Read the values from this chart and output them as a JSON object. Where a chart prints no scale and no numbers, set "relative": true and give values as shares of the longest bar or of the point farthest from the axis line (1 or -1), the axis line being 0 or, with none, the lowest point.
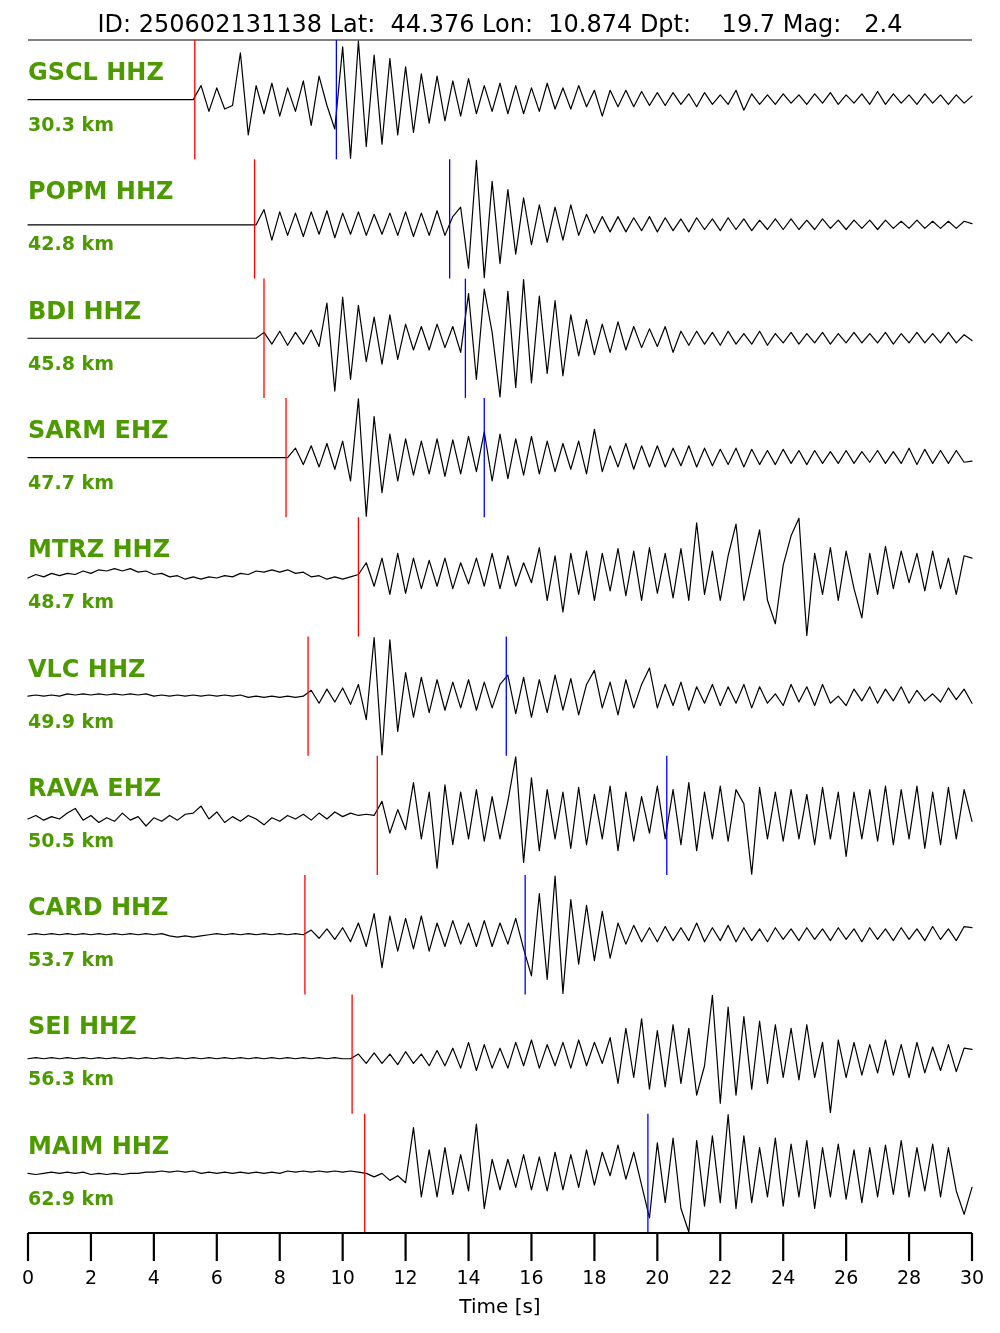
{
  "chart_data": [
    {
      "type": "line",
      "title": "ID: 250602131138 Lat:  44.376 Lon:  10.874 Dpt:    19.7 Mag:   2.4",
      "annotations": [
        "GSCL HHZ",
        "30.3 km"
      ],
      "relative": true,
      "xlim": [
        0,
        30
      ],
      "tick_labels": false,
      "color": "#000000",
      "x": [
        0,
        0.25,
        0.5,
        0.75,
        1,
        1.25,
        1.5,
        1.75,
        2,
        2.25,
        2.5,
        2.75,
        3,
        3.25,
        3.5,
        3.75,
        4,
        4.25,
        4.5,
        4.75,
        5,
        5.25,
        5.5,
        5.75,
        6,
        6.25,
        6.5,
        6.75,
        7,
        7.25,
        7.5,
        7.75,
        8,
        8.25,
        8.5,
        8.75,
        9,
        9.25,
        9.5,
        9.75,
        10,
        10.25,
        10.5,
        10.75,
        11,
        11.25,
        11.5,
        11.75,
        12,
        12.25,
        12.5,
        12.75,
        13,
        13.25,
        13.5,
        13.75,
        14,
        14.25,
        14.5,
        14.75,
        15,
        15.25,
        15.5,
        15.75,
        16,
        16.25,
        16.5,
        16.75,
        17,
        17.25,
        17.5,
        17.75,
        18,
        18.25,
        18.5,
        18.75,
        19,
        19.25,
        19.5,
        19.75,
        20,
        20.25,
        20.5,
        20.75,
        21,
        21.25,
        21.5,
        21.75,
        22,
        22.25,
        22.5,
        22.75,
        23,
        23.25,
        23.5,
        23.75,
        24,
        24.25,
        24.5,
        24.75,
        25,
        25.25,
        25.5,
        25.75,
        26,
        26.25,
        26.5,
        26.75,
        27,
        27.25,
        27.5,
        27.75,
        28,
        28.25,
        28.5,
        28.75,
        29,
        29.25,
        29.5,
        29.75,
        30
      ],
      "values": [
        0.5,
        0.5,
        0.5,
        0.5,
        0.5,
        0.5,
        0.5,
        0.5,
        0.5,
        0.5,
        0.5,
        0.5,
        0.5,
        0.5,
        0.5,
        0.5,
        0.5,
        0.5,
        0.5,
        0.5,
        0.5,
        0.5,
        0.62,
        0.4,
        0.6,
        0.42,
        0.45,
        0.9,
        0.2,
        0.62,
        0.38,
        0.64,
        0.36,
        0.6,
        0.4,
        0.66,
        0.28,
        0.7,
        0.45,
        0.25,
        0.95,
        0,
        1,
        0.1,
        0.88,
        0.12,
        0.85,
        0.2,
        0.78,
        0.22,
        0.72,
        0.3,
        0.7,
        0.32,
        0.66,
        0.36,
        0.68,
        0.38,
        0.62,
        0.4,
        0.64,
        0.38,
        0.62,
        0.38,
        0.6,
        0.4,
        0.64,
        0.42,
        0.6,
        0.42,
        0.62,
        0.44,
        0.58,
        0.36,
        0.58,
        0.44,
        0.58,
        0.44,
        0.57,
        0.45,
        0.56,
        0.45,
        0.56,
        0.46,
        0.55,
        0.44,
        0.56,
        0.46,
        0.54,
        0.46,
        0.58,
        0.41,
        0.55,
        0.46,
        0.54,
        0.46,
        0.55,
        0.47,
        0.54,
        0.46,
        0.55,
        0.47,
        0.56,
        0.46,
        0.54,
        0.47,
        0.55,
        0.46,
        0.57,
        0.46,
        0.55,
        0.47,
        0.54,
        0.46,
        0.55,
        0.47,
        0.54,
        0.46,
        0.54,
        0.47,
        0.53
      ],
      "ref_lines": [
        {
          "axis": "x",
          "value": 5.3,
          "color": "#ff0000"
        },
        {
          "axis": "x",
          "value": 9.8,
          "color": "#0000ff"
        }
      ]
    },
    {
      "type": "line",
      "annotations": [
        "POPM HHZ",
        "42.8 km"
      ],
      "relative": true,
      "xlim": [
        0,
        30
      ],
      "tick_labels": false,
      "color": "#000000",
      "x": [
        0,
        0.25,
        0.5,
        0.75,
        1,
        1.25,
        1.5,
        1.75,
        2,
        2.25,
        2.5,
        2.75,
        3,
        3.25,
        3.5,
        3.75,
        4,
        4.25,
        4.5,
        4.75,
        5,
        5.25,
        5.5,
        5.75,
        6,
        6.25,
        6.5,
        6.75,
        7,
        7.25,
        7.5,
        7.75,
        8,
        8.25,
        8.5,
        8.75,
        9,
        9.25,
        9.5,
        9.75,
        10,
        10.25,
        10.5,
        10.75,
        11,
        11.25,
        11.5,
        11.75,
        12,
        12.25,
        12.5,
        12.75,
        13,
        13.25,
        13.5,
        13.75,
        14,
        14.25,
        14.5,
        14.75,
        15,
        15.25,
        15.5,
        15.75,
        16,
        16.25,
        16.5,
        16.75,
        17,
        17.25,
        17.5,
        17.75,
        18,
        18.25,
        18.5,
        18.75,
        19,
        19.25,
        19.5,
        19.75,
        20,
        20.25,
        20.5,
        20.75,
        21,
        21.25,
        21.5,
        21.75,
        22,
        22.25,
        22.5,
        22.75,
        23,
        23.25,
        23.5,
        23.75,
        24,
        24.25,
        24.5,
        24.75,
        25,
        25.25,
        25.5,
        25.75,
        26,
        26.25,
        26.5,
        26.75,
        27,
        27.25,
        27.5,
        27.75,
        28,
        28.25,
        28.5,
        28.75,
        29,
        29.25,
        29.5,
        29.75,
        30
      ],
      "values": [
        0.45,
        0.45,
        0.45,
        0.45,
        0.45,
        0.45,
        0.45,
        0.45,
        0.45,
        0.45,
        0.45,
        0.45,
        0.45,
        0.45,
        0.45,
        0.45,
        0.45,
        0.45,
        0.45,
        0.45,
        0.45,
        0.45,
        0.45,
        0.45,
        0.45,
        0.45,
        0.45,
        0.45,
        0.45,
        0.45,
        0.58,
        0.32,
        0.56,
        0.36,
        0.55,
        0.35,
        0.56,
        0.37,
        0.57,
        0.34,
        0.55,
        0.37,
        0.56,
        0.36,
        0.54,
        0.37,
        0.55,
        0.36,
        0.56,
        0.35,
        0.55,
        0.36,
        0.57,
        0.36,
        0.52,
        0.6,
        0.08,
        1,
        0,
        0.82,
        0.12,
        0.75,
        0.2,
        0.68,
        0.28,
        0.62,
        0.3,
        0.6,
        0.32,
        0.62,
        0.36,
        0.54,
        0.38,
        0.52,
        0.39,
        0.52,
        0.39,
        0.51,
        0.4,
        0.52,
        0.39,
        0.51,
        0.4,
        0.5,
        0.39,
        0.51,
        0.41,
        0.5,
        0.4,
        0.51,
        0.41,
        0.5,
        0.4,
        0.49,
        0.41,
        0.5,
        0.41,
        0.5,
        0.41,
        0.49,
        0.41,
        0.5,
        0.42,
        0.49,
        0.41,
        0.49,
        0.42,
        0.49,
        0.41,
        0.49,
        0.42,
        0.48,
        0.42,
        0.49,
        0.42,
        0.48,
        0.42,
        0.48,
        0.42,
        0.48,
        0.46
      ],
      "ref_lines": [
        {
          "axis": "x",
          "value": 7.2,
          "color": "#ff0000"
        },
        {
          "axis": "x",
          "value": 13.4,
          "color": "#0000ff"
        }
      ]
    },
    {
      "type": "line",
      "annotations": [
        "BDI HHZ",
        "45.8 km"
      ],
      "relative": true,
      "xlim": [
        0,
        30
      ],
      "tick_labels": false,
      "color": "#000000",
      "x": [
        0,
        0.25,
        0.5,
        0.75,
        1,
        1.25,
        1.5,
        1.75,
        2,
        2.25,
        2.5,
        2.75,
        3,
        3.25,
        3.5,
        3.75,
        4,
        4.25,
        4.5,
        4.75,
        5,
        5.25,
        5.5,
        5.75,
        6,
        6.25,
        6.5,
        6.75,
        7,
        7.25,
        7.5,
        7.75,
        8,
        8.25,
        8.5,
        8.75,
        9,
        9.25,
        9.5,
        9.75,
        10,
        10.25,
        10.5,
        10.75,
        11,
        11.25,
        11.5,
        11.75,
        12,
        12.25,
        12.5,
        12.75,
        13,
        13.25,
        13.5,
        13.75,
        14,
        14.25,
        14.5,
        14.75,
        15,
        15.25,
        15.5,
        15.75,
        16,
        16.25,
        16.5,
        16.75,
        17,
        17.25,
        17.5,
        17.75,
        18,
        18.25,
        18.5,
        18.75,
        19,
        19.25,
        19.5,
        19.75,
        20,
        20.25,
        20.5,
        20.75,
        21,
        21.25,
        21.5,
        21.75,
        22,
        22.25,
        22.5,
        22.75,
        23,
        23.25,
        23.5,
        23.75,
        24,
        24.25,
        24.5,
        24.75,
        25,
        25.25,
        25.5,
        25.75,
        26,
        26.25,
        26.5,
        26.75,
        27,
        27.25,
        27.5,
        27.75,
        28,
        28.25,
        28.5,
        28.75,
        29,
        29.25,
        29.5,
        29.75,
        30
      ],
      "values": [
        0.5,
        0.5,
        0.5,
        0.5,
        0.5,
        0.5,
        0.5,
        0.5,
        0.5,
        0.5,
        0.5,
        0.5,
        0.5,
        0.5,
        0.5,
        0.5,
        0.5,
        0.5,
        0.5,
        0.5,
        0.5,
        0.5,
        0.5,
        0.5,
        0.5,
        0.5,
        0.5,
        0.5,
        0.5,
        0.5,
        0.55,
        0.45,
        0.56,
        0.44,
        0.55,
        0.45,
        0.57,
        0.43,
        0.8,
        0.05,
        0.85,
        0.15,
        0.78,
        0.3,
        0.68,
        0.28,
        0.7,
        0.32,
        0.62,
        0.4,
        0.6,
        0.4,
        0.62,
        0.42,
        0.6,
        0.38,
        0.88,
        0.15,
        0.92,
        0.55,
        0,
        0.9,
        0.08,
        1,
        0.12,
        0.86,
        0.2,
        0.82,
        0.18,
        0.7,
        0.35,
        0.66,
        0.36,
        0.62,
        0.38,
        0.64,
        0.4,
        0.6,
        0.42,
        0.58,
        0.43,
        0.6,
        0.38,
        0.56,
        0.44,
        0.56,
        0.45,
        0.55,
        0.44,
        0.56,
        0.45,
        0.54,
        0.45,
        0.56,
        0.44,
        0.54,
        0.46,
        0.55,
        0.45,
        0.54,
        0.46,
        0.55,
        0.45,
        0.54,
        0.46,
        0.55,
        0.46,
        0.54,
        0.46,
        0.55,
        0.45,
        0.54,
        0.46,
        0.55,
        0.46,
        0.54,
        0.46,
        0.55,
        0.46,
        0.53,
        0.48
      ],
      "ref_lines": [
        {
          "axis": "x",
          "value": 7.5,
          "color": "#ff0000"
        },
        {
          "axis": "x",
          "value": 13.9,
          "color": "#0000ff"
        }
      ]
    },
    {
      "type": "line",
      "annotations": [
        "SARM EHZ",
        "47.7 km"
      ],
      "relative": true,
      "xlim": [
        0,
        30
      ],
      "tick_labels": false,
      "color": "#000000",
      "x": [
        0,
        0.25,
        0.5,
        0.75,
        1,
        1.25,
        1.5,
        1.75,
        2,
        2.25,
        2.5,
        2.75,
        3,
        3.25,
        3.5,
        3.75,
        4,
        4.25,
        4.5,
        4.75,
        5,
        5.25,
        5.5,
        5.75,
        6,
        6.25,
        6.5,
        6.75,
        7,
        7.25,
        7.5,
        7.75,
        8,
        8.25,
        8.5,
        8.75,
        9,
        9.25,
        9.5,
        9.75,
        10,
        10.25,
        10.5,
        10.75,
        11,
        11.25,
        11.5,
        11.75,
        12,
        12.25,
        12.5,
        12.75,
        13,
        13.25,
        13.5,
        13.75,
        14,
        14.25,
        14.5,
        14.75,
        15,
        15.25,
        15.5,
        15.75,
        16,
        16.25,
        16.5,
        16.75,
        17,
        17.25,
        17.5,
        17.75,
        18,
        18.25,
        18.5,
        18.75,
        19,
        19.25,
        19.5,
        19.75,
        20,
        20.25,
        20.5,
        20.75,
        21,
        21.25,
        21.5,
        21.75,
        22,
        22.25,
        22.5,
        22.75,
        23,
        23.25,
        23.5,
        23.75,
        24,
        24.25,
        24.5,
        24.75,
        25,
        25.25,
        25.5,
        25.75,
        26,
        26.25,
        26.5,
        26.75,
        27,
        27.25,
        27.5,
        27.75,
        28,
        28.25,
        28.5,
        28.75,
        29,
        29.25,
        29.5,
        29.75,
        30
      ],
      "values": [
        0.5,
        0.5,
        0.5,
        0.5,
        0.5,
        0.5,
        0.5,
        0.5,
        0.5,
        0.5,
        0.5,
        0.5,
        0.5,
        0.5,
        0.5,
        0.5,
        0.5,
        0.5,
        0.5,
        0.5,
        0.5,
        0.5,
        0.5,
        0.5,
        0.5,
        0.5,
        0.5,
        0.5,
        0.5,
        0.5,
        0.5,
        0.5,
        0.5,
        0.5,
        0.58,
        0.44,
        0.6,
        0.42,
        0.62,
        0.4,
        0.64,
        0.3,
        1,
        0,
        0.85,
        0.2,
        0.7,
        0.3,
        0.66,
        0.35,
        0.64,
        0.36,
        0.66,
        0.34,
        0.65,
        0.36,
        0.68,
        0.38,
        0.72,
        0.3,
        0.7,
        0.32,
        0.66,
        0.35,
        0.68,
        0.36,
        0.64,
        0.38,
        0.62,
        0.4,
        0.64,
        0.36,
        0.74,
        0.38,
        0.6,
        0.42,
        0.62,
        0.4,
        0.6,
        0.42,
        0.6,
        0.42,
        0.58,
        0.43,
        0.6,
        0.42,
        0.58,
        0.43,
        0.57,
        0.44,
        0.58,
        0.42,
        0.57,
        0.44,
        0.56,
        0.44,
        0.57,
        0.45,
        0.56,
        0.44,
        0.56,
        0.45,
        0.55,
        0.45,
        0.56,
        0.45,
        0.55,
        0.46,
        0.56,
        0.45,
        0.55,
        0.45,
        0.58,
        0.44,
        0.57,
        0.45,
        0.56,
        0.45,
        0.56,
        0.46,
        0.47
      ],
      "ref_lines": [
        {
          "axis": "x",
          "value": 8.2,
          "color": "#ff0000"
        },
        {
          "axis": "x",
          "value": 14.5,
          "color": "#0000ff"
        }
      ]
    },
    {
      "type": "line",
      "annotations": [
        "MTRZ HHZ",
        "48.7 km"
      ],
      "relative": true,
      "xlim": [
        0,
        30
      ],
      "tick_labels": false,
      "color": "#000000",
      "x": [
        0,
        0.25,
        0.5,
        0.75,
        1,
        1.25,
        1.5,
        1.75,
        2,
        2.25,
        2.5,
        2.75,
        3,
        3.25,
        3.5,
        3.75,
        4,
        4.25,
        4.5,
        4.75,
        5,
        5.25,
        5.5,
        5.75,
        6,
        6.25,
        6.5,
        6.75,
        7,
        7.25,
        7.5,
        7.75,
        8,
        8.25,
        8.5,
        8.75,
        9,
        9.25,
        9.5,
        9.75,
        10,
        10.25,
        10.5,
        10.75,
        11,
        11.25,
        11.5,
        11.75,
        12,
        12.25,
        12.5,
        12.75,
        13,
        13.25,
        13.5,
        13.75,
        14,
        14.25,
        14.5,
        14.75,
        15,
        15.25,
        15.5,
        15.75,
        16,
        16.25,
        16.5,
        16.75,
        17,
        17.25,
        17.5,
        17.75,
        18,
        18.25,
        18.5,
        18.75,
        19,
        19.25,
        19.5,
        19.75,
        20,
        20.25,
        20.5,
        20.75,
        21,
        21.25,
        21.5,
        21.75,
        22,
        22.25,
        22.5,
        22.75,
        23,
        23.25,
        23.5,
        23.75,
        24,
        24.25,
        24.5,
        24.75,
        25,
        25.25,
        25.5,
        25.75,
        26,
        26.25,
        26.5,
        26.75,
        27,
        27.25,
        27.5,
        27.75,
        28,
        28.25,
        28.5,
        28.75,
        29,
        29.25,
        29.5,
        29.75,
        30
      ],
      "values": [
        0.49,
        0.52,
        0.5,
        0.53,
        0.51,
        0.53,
        0.52,
        0.55,
        0.53,
        0.56,
        0.55,
        0.57,
        0.55,
        0.57,
        0.54,
        0.55,
        0.52,
        0.53,
        0.5,
        0.51,
        0.48,
        0.5,
        0.48,
        0.5,
        0.49,
        0.51,
        0.5,
        0.53,
        0.52,
        0.55,
        0.54,
        0.56,
        0.54,
        0.56,
        0.53,
        0.54,
        0.5,
        0.51,
        0.48,
        0.5,
        0.48,
        0.5,
        0.52,
        0.62,
        0.42,
        0.66,
        0.35,
        0.7,
        0.36,
        0.66,
        0.4,
        0.64,
        0.42,
        0.66,
        0.4,
        0.62,
        0.44,
        0.66,
        0.42,
        0.7,
        0.4,
        0.68,
        0.42,
        0.62,
        0.45,
        0.75,
        0.3,
        0.68,
        0.2,
        0.7,
        0.35,
        0.72,
        0.3,
        0.7,
        0.38,
        0.74,
        0.34,
        0.72,
        0.3,
        0.75,
        0.36,
        0.7,
        0.32,
        0.74,
        0.3,
        0.96,
        0.35,
        0.72,
        0.3,
        0.68,
        0.95,
        0.3,
        0.6,
        0.9,
        0.3,
        0.1,
        0.6,
        0.85,
        1,
        0,
        0.7,
        0.35,
        0.75,
        0.3,
        0.72,
        0.4,
        0.15,
        0.7,
        0.35,
        0.76,
        0.4,
        0.72,
        0.45,
        0.7,
        0.38,
        0.72,
        0.4,
        0.66,
        0.35,
        0.68,
        0.66
      ],
      "ref_lines": [
        {
          "axis": "x",
          "value": 10.5,
          "color": "#ff0000"
        }
      ]
    },
    {
      "type": "line",
      "annotations": [
        "VLC HHZ",
        "49.9 km"
      ],
      "relative": true,
      "xlim": [
        0,
        30
      ],
      "tick_labels": false,
      "color": "#000000",
      "x": [
        0,
        0.25,
        0.5,
        0.75,
        1,
        1.25,
        1.5,
        1.75,
        2,
        2.25,
        2.5,
        2.75,
        3,
        3.25,
        3.5,
        3.75,
        4,
        4.25,
        4.5,
        4.75,
        5,
        5.25,
        5.5,
        5.75,
        6,
        6.25,
        6.5,
        6.75,
        7,
        7.25,
        7.5,
        7.75,
        8,
        8.25,
        8.5,
        8.75,
        9,
        9.25,
        9.5,
        9.75,
        10,
        10.25,
        10.5,
        10.75,
        11,
        11.25,
        11.5,
        11.75,
        12,
        12.25,
        12.5,
        12.75,
        13,
        13.25,
        13.5,
        13.75,
        14,
        14.25,
        14.5,
        14.75,
        15,
        15.25,
        15.5,
        15.75,
        16,
        16.25,
        16.5,
        16.75,
        17,
        17.25,
        17.5,
        17.75,
        18,
        18.25,
        18.5,
        18.75,
        19,
        19.25,
        19.5,
        19.75,
        20,
        20.25,
        20.5,
        20.75,
        21,
        21.25,
        21.5,
        21.75,
        22,
        22.25,
        22.5,
        22.75,
        23,
        23.25,
        23.5,
        23.75,
        24,
        24.25,
        24.5,
        24.75,
        25,
        25.25,
        25.5,
        25.75,
        26,
        26.25,
        26.5,
        26.75,
        27,
        27.25,
        27.5,
        27.75,
        28,
        28.25,
        28.5,
        28.75,
        29,
        29.25,
        29.5,
        29.75,
        30
      ],
      "values": [
        0.5,
        0.51,
        0.5,
        0.51,
        0.5,
        0.52,
        0.51,
        0.52,
        0.51,
        0.52,
        0.51,
        0.52,
        0.51,
        0.52,
        0.51,
        0.52,
        0.5,
        0.51,
        0.5,
        0.51,
        0.5,
        0.51,
        0.5,
        0.51,
        0.5,
        0.51,
        0.5,
        0.51,
        0.49,
        0.5,
        0.49,
        0.5,
        0.49,
        0.5,
        0.49,
        0.5,
        0.55,
        0.44,
        0.56,
        0.45,
        0.57,
        0.43,
        0.6,
        0.3,
        1,
        0,
        0.98,
        0.2,
        0.7,
        0.32,
        0.66,
        0.36,
        0.64,
        0.38,
        0.62,
        0.4,
        0.64,
        0.38,
        0.62,
        0.4,
        0.6,
        0.68,
        0.35,
        0.66,
        0.32,
        0.64,
        0.36,
        0.68,
        0.38,
        0.65,
        0.34,
        0.6,
        0.72,
        0.4,
        0.62,
        0.34,
        0.64,
        0.4,
        0.6,
        0.74,
        0.4,
        0.6,
        0.42,
        0.62,
        0.38,
        0.58,
        0.44,
        0.6,
        0.42,
        0.58,
        0.44,
        0.6,
        0.4,
        0.58,
        0.44,
        0.52,
        0.42,
        0.6,
        0.45,
        0.58,
        0.42,
        0.6,
        0.44,
        0.5,
        0.42,
        0.56,
        0.46,
        0.58,
        0.44,
        0.56,
        0.46,
        0.58,
        0.44,
        0.55,
        0.46,
        0.52,
        0.45,
        0.57,
        0.47,
        0.56,
        0.44
      ],
      "ref_lines": [
        {
          "axis": "x",
          "value": 8.9,
          "color": "#ff0000"
        },
        {
          "axis": "x",
          "value": 15.2,
          "color": "#0000ff"
        }
      ]
    },
    {
      "type": "line",
      "annotations": [
        "RAVA EHZ",
        "50.5 km"
      ],
      "relative": true,
      "xlim": [
        0,
        30
      ],
      "tick_labels": false,
      "color": "#000000",
      "x": [
        0,
        0.25,
        0.5,
        0.75,
        1,
        1.25,
        1.5,
        1.75,
        2,
        2.25,
        2.5,
        2.75,
        3,
        3.25,
        3.5,
        3.75,
        4,
        4.25,
        4.5,
        4.75,
        5,
        5.25,
        5.5,
        5.75,
        6,
        6.25,
        6.5,
        6.75,
        7,
        7.25,
        7.5,
        7.75,
        8,
        8.25,
        8.5,
        8.75,
        9,
        9.25,
        9.5,
        9.75,
        10,
        10.25,
        10.5,
        10.75,
        11,
        11.25,
        11.5,
        11.75,
        12,
        12.25,
        12.5,
        12.75,
        13,
        13.25,
        13.5,
        13.75,
        14,
        14.25,
        14.5,
        14.75,
        15,
        15.25,
        15.5,
        15.75,
        16,
        16.25,
        16.5,
        16.75,
        17,
        17.25,
        17.5,
        17.75,
        18,
        18.25,
        18.5,
        18.75,
        19,
        19.25,
        19.5,
        19.75,
        20,
        20.25,
        20.5,
        20.75,
        21,
        21.25,
        21.5,
        21.75,
        22,
        22.25,
        22.5,
        22.75,
        23,
        23.25,
        23.5,
        23.75,
        24,
        24.25,
        24.5,
        24.75,
        25,
        25.25,
        25.5,
        25.75,
        26,
        26.25,
        26.5,
        26.75,
        27,
        27.25,
        27.5,
        27.75,
        28,
        28.25,
        28.5,
        28.75,
        29,
        29.25,
        29.5,
        29.75,
        30
      ],
      "values": [
        0.47,
        0.5,
        0.46,
        0.49,
        0.47,
        0.52,
        0.56,
        0.46,
        0.5,
        0.44,
        0.48,
        0.45,
        0.52,
        0.46,
        0.49,
        0.41,
        0.48,
        0.45,
        0.5,
        0.46,
        0.51,
        0.52,
        0.58,
        0.47,
        0.53,
        0.44,
        0.49,
        0.45,
        0.5,
        0.47,
        0.42,
        0.48,
        0.45,
        0.5,
        0.47,
        0.51,
        0.46,
        0.52,
        0.47,
        0.53,
        0.49,
        0.52,
        0.5,
        0.51,
        0.5,
        0.62,
        0.35,
        0.55,
        0.38,
        0.78,
        0.3,
        0.7,
        0.05,
        0.76,
        0.25,
        0.7,
        0.3,
        0.72,
        0.28,
        0.66,
        0.3,
        0.62,
        1,
        0.1,
        0.82,
        0.2,
        0.72,
        0.3,
        0.7,
        0.22,
        0.74,
        0.25,
        0.68,
        0.3,
        0.75,
        0.2,
        0.7,
        0.28,
        0.66,
        0.35,
        0.75,
        0.3,
        0.72,
        0.25,
        0.78,
        0.2,
        0.7,
        0.3,
        0.75,
        0.28,
        0.72,
        0.6,
        0,
        0.74,
        0.3,
        0.7,
        0.28,
        0.72,
        0.3,
        0.68,
        0.25,
        0.74,
        0.3,
        0.7,
        0.15,
        0.7,
        0.3,
        0.72,
        0.28,
        0.75,
        0.25,
        0.72,
        0.3,
        0.75,
        0.22,
        0.7,
        0.25,
        0.74,
        0.3,
        0.72,
        0.45
      ],
      "ref_lines": [
        {
          "axis": "x",
          "value": 11.1,
          "color": "#ff0000"
        },
        {
          "axis": "x",
          "value": 20.3,
          "color": "#0000ff"
        }
      ]
    },
    {
      "type": "line",
      "annotations": [
        "CARD HHZ",
        "53.7 km"
      ],
      "relative": true,
      "xlim": [
        0,
        30
      ],
      "tick_labels": false,
      "color": "#000000",
      "x": [
        0,
        0.25,
        0.5,
        0.75,
        1,
        1.25,
        1.5,
        1.75,
        2,
        2.25,
        2.5,
        2.75,
        3,
        3.25,
        3.5,
        3.75,
        4,
        4.25,
        4.5,
        4.75,
        5,
        5.25,
        5.5,
        5.75,
        6,
        6.25,
        6.5,
        6.75,
        7,
        7.25,
        7.5,
        7.75,
        8,
        8.25,
        8.5,
        8.75,
        9,
        9.25,
        9.5,
        9.75,
        10,
        10.25,
        10.5,
        10.75,
        11,
        11.25,
        11.5,
        11.75,
        12,
        12.25,
        12.5,
        12.75,
        13,
        13.25,
        13.5,
        13.75,
        14,
        14.25,
        14.5,
        14.75,
        15,
        15.25,
        15.5,
        15.75,
        16,
        16.25,
        16.5,
        16.75,
        17,
        17.25,
        17.5,
        17.75,
        18,
        18.25,
        18.5,
        18.75,
        19,
        19.25,
        19.5,
        19.75,
        20,
        20.25,
        20.5,
        20.75,
        21,
        21.25,
        21.5,
        21.75,
        22,
        22.25,
        22.5,
        22.75,
        23,
        23.25,
        23.5,
        23.75,
        24,
        24.25,
        24.5,
        24.75,
        25,
        25.25,
        25.5,
        25.75,
        26,
        26.25,
        26.5,
        26.75,
        27,
        27.25,
        27.5,
        27.75,
        28,
        28.25,
        28.5,
        28.75,
        29,
        29.25,
        29.5,
        29.75,
        30
      ],
      "values": [
        0.5,
        0.51,
        0.5,
        0.51,
        0.5,
        0.51,
        0.5,
        0.51,
        0.5,
        0.51,
        0.5,
        0.51,
        0.5,
        0.51,
        0.5,
        0.51,
        0.5,
        0.51,
        0.49,
        0.48,
        0.49,
        0.48,
        0.49,
        0.5,
        0.51,
        0.5,
        0.51,
        0.5,
        0.51,
        0.5,
        0.51,
        0.5,
        0.51,
        0.5,
        0.51,
        0.5,
        0.54,
        0.47,
        0.55,
        0.46,
        0.56,
        0.44,
        0.6,
        0.4,
        0.68,
        0.22,
        0.66,
        0.36,
        0.64,
        0.38,
        0.66,
        0.36,
        0.6,
        0.4,
        0.62,
        0.42,
        0.6,
        0.4,
        0.62,
        0.4,
        0.6,
        0.42,
        0.64,
        0.38,
        0.15,
        0.85,
        0.12,
        1,
        0,
        0.8,
        0.25,
        0.75,
        0.28,
        0.7,
        0.3,
        0.6,
        0.42,
        0.58,
        0.44,
        0.56,
        0.44,
        0.57,
        0.45,
        0.56,
        0.45,
        0.6,
        0.44,
        0.56,
        0.45,
        0.58,
        0.44,
        0.56,
        0.45,
        0.55,
        0.44,
        0.56,
        0.46,
        0.55,
        0.45,
        0.56,
        0.46,
        0.55,
        0.45,
        0.56,
        0.46,
        0.55,
        0.44,
        0.56,
        0.46,
        0.55,
        0.45,
        0.56,
        0.46,
        0.55,
        0.45,
        0.57,
        0.46,
        0.55,
        0.45,
        0.57,
        0.56
      ],
      "ref_lines": [
        {
          "axis": "x",
          "value": 8.8,
          "color": "#ff0000"
        },
        {
          "axis": "x",
          "value": 15.8,
          "color": "#0000ff"
        }
      ]
    },
    {
      "type": "line",
      "annotations": [
        "SEI HHZ",
        "56.3 km"
      ],
      "relative": true,
      "xlim": [
        0,
        30
      ],
      "tick_labels": false,
      "color": "#000000",
      "x": [
        0,
        0.25,
        0.5,
        0.75,
        1,
        1.25,
        1.5,
        1.75,
        2,
        2.25,
        2.5,
        2.75,
        3,
        3.25,
        3.5,
        3.75,
        4,
        4.25,
        4.5,
        4.75,
        5,
        5.25,
        5.5,
        5.75,
        6,
        6.25,
        6.5,
        6.75,
        7,
        7.25,
        7.5,
        7.75,
        8,
        8.25,
        8.5,
        8.75,
        9,
        9.25,
        9.5,
        9.75,
        10,
        10.25,
        10.5,
        10.75,
        11,
        11.25,
        11.5,
        11.75,
        12,
        12.25,
        12.5,
        12.75,
        13,
        13.25,
        13.5,
        13.75,
        14,
        14.25,
        14.5,
        14.75,
        15,
        15.25,
        15.5,
        15.75,
        16,
        16.25,
        16.5,
        16.75,
        17,
        17.25,
        17.5,
        17.75,
        18,
        18.25,
        18.5,
        18.75,
        19,
        19.25,
        19.5,
        19.75,
        20,
        20.25,
        20.5,
        20.75,
        21,
        21.25,
        21.5,
        21.75,
        22,
        22.25,
        22.5,
        22.75,
        23,
        23.25,
        23.5,
        23.75,
        24,
        24.25,
        24.5,
        24.75,
        25,
        25.25,
        25.5,
        25.75,
        26,
        26.25,
        26.5,
        26.75,
        27,
        27.25,
        27.5,
        27.75,
        28,
        28.25,
        28.5,
        28.75,
        29,
        29.25,
        29.5,
        29.75,
        30
      ],
      "values": [
        0.46,
        0.47,
        0.46,
        0.47,
        0.46,
        0.47,
        0.46,
        0.47,
        0.46,
        0.47,
        0.46,
        0.47,
        0.46,
        0.47,
        0.46,
        0.47,
        0.46,
        0.47,
        0.46,
        0.47,
        0.46,
        0.47,
        0.46,
        0.47,
        0.46,
        0.47,
        0.46,
        0.47,
        0.46,
        0.47,
        0.46,
        0.47,
        0.46,
        0.47,
        0.46,
        0.47,
        0.46,
        0.47,
        0.46,
        0.47,
        0.46,
        0.46,
        0.5,
        0.42,
        0.51,
        0.42,
        0.5,
        0.41,
        0.52,
        0.42,
        0.5,
        0.4,
        0.53,
        0.4,
        0.55,
        0.38,
        0.6,
        0.36,
        0.58,
        0.38,
        0.55,
        0.38,
        0.6,
        0.4,
        0.62,
        0.38,
        0.58,
        0.4,
        0.6,
        0.38,
        0.62,
        0.4,
        0.6,
        0.42,
        0.64,
        0.25,
        0.72,
        0.3,
        0.8,
        0.2,
        0.7,
        0.22,
        0.75,
        0.25,
        0.72,
        0.15,
        0.4,
        1,
        0.08,
        0.9,
        0.15,
        0.82,
        0.2,
        0.78,
        0.25,
        0.75,
        0.3,
        0.72,
        0.28,
        0.75,
        0.3,
        0.6,
        0,
        0.62,
        0.3,
        0.6,
        0.32,
        0.58,
        0.34,
        0.62,
        0.32,
        0.58,
        0.3,
        0.6,
        0.34,
        0.56,
        0.36,
        0.58,
        0.35,
        0.55,
        0.54
      ],
      "ref_lines": [
        {
          "axis": "x",
          "value": 10.3,
          "color": "#ff0000"
        }
      ]
    },
    {
      "type": "line",
      "annotations": [
        "MAIM HHZ",
        "62.9 km"
      ],
      "relative": true,
      "xlim": [
        0,
        30
      ],
      "tick_labels": "x",
      "xlabel": "Time [s]",
      "color": "#000000",
      "x": [
        0,
        0.25,
        0.5,
        0.75,
        1,
        1.25,
        1.5,
        1.75,
        2,
        2.25,
        2.5,
        2.75,
        3,
        3.25,
        3.5,
        3.75,
        4,
        4.25,
        4.5,
        4.75,
        5,
        5.25,
        5.5,
        5.75,
        6,
        6.25,
        6.5,
        6.75,
        7,
        7.25,
        7.5,
        7.75,
        8,
        8.25,
        8.5,
        8.75,
        9,
        9.25,
        9.5,
        9.75,
        10,
        10.25,
        10.5,
        10.75,
        11,
        11.25,
        11.5,
        11.75,
        12,
        12.25,
        12.5,
        12.75,
        13,
        13.25,
        13.5,
        13.75,
        14,
        14.25,
        14.5,
        14.75,
        15,
        15.25,
        15.5,
        15.75,
        16,
        16.25,
        16.5,
        16.75,
        17,
        17.25,
        17.5,
        17.75,
        18,
        18.25,
        18.5,
        18.75,
        19,
        19.25,
        19.5,
        19.75,
        20,
        20.25,
        20.5,
        20.75,
        21,
        21.25,
        21.5,
        21.75,
        22,
        22.25,
        22.5,
        22.75,
        23,
        23.25,
        23.5,
        23.75,
        24,
        24.25,
        24.5,
        24.75,
        25,
        25.25,
        25.5,
        25.75,
        26,
        26.25,
        26.5,
        26.75,
        27,
        27.25,
        27.5,
        27.75,
        28,
        28.25,
        28.5,
        28.75,
        29,
        29.25,
        29.5,
        29.75,
        30
      ],
      "values": [
        0.5,
        0.49,
        0.5,
        0.51,
        0.5,
        0.51,
        0.5,
        0.51,
        0.49,
        0.5,
        0.49,
        0.5,
        0.49,
        0.5,
        0.5,
        0.51,
        0.51,
        0.52,
        0.51,
        0.52,
        0.51,
        0.52,
        0.5,
        0.51,
        0.5,
        0.51,
        0.5,
        0.51,
        0.5,
        0.51,
        0.5,
        0.51,
        0.5,
        0.52,
        0.51,
        0.52,
        0.51,
        0.52,
        0.51,
        0.52,
        0.51,
        0.52,
        0.51,
        0.5,
        0.47,
        0.5,
        0.44,
        0.48,
        0.42,
        0.89,
        0.3,
        0.7,
        0.3,
        0.72,
        0.32,
        0.66,
        0.35,
        0.92,
        0.2,
        0.62,
        0.36,
        0.62,
        0.38,
        0.66,
        0.36,
        0.64,
        0.35,
        0.68,
        0.36,
        0.66,
        0.38,
        0.7,
        0.4,
        0.68,
        0.48,
        0.74,
        0.45,
        0.68,
        0.4,
        0.12,
        0.76,
        0.25,
        0.8,
        0.2,
        0,
        0.78,
        0.22,
        0.82,
        0.25,
        1,
        0.2,
        0.82,
        0.25,
        0.72,
        0.3,
        0.8,
        0.22,
        0.75,
        0.3,
        0.78,
        0.2,
        0.72,
        0.3,
        0.75,
        0.28,
        0.7,
        0.25,
        0.72,
        0.3,
        0.74,
        0.32,
        0.78,
        0.3,
        0.72,
        0.35,
        0.75,
        0.3,
        0.72,
        0.35,
        0.15,
        0.38
      ],
      "xticks": [
        0,
        2,
        4,
        6,
        8,
        10,
        12,
        14,
        16,
        18,
        20,
        22,
        24,
        26,
        28,
        30
      ],
      "ref_lines": [
        {
          "axis": "x",
          "value": 10.7,
          "color": "#ff0000"
        },
        {
          "axis": "x",
          "value": 19.7,
          "color": "#0000ff"
        }
      ]
    }
  ]
}
